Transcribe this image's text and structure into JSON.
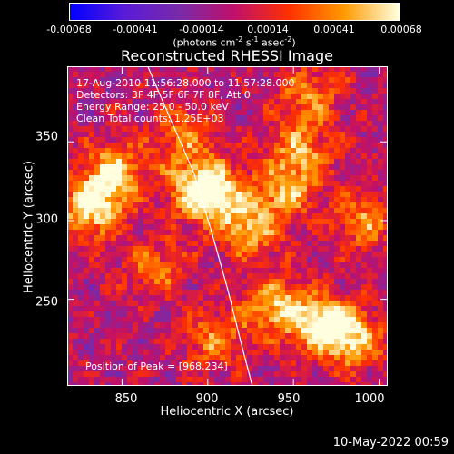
{
  "colorbar": {
    "ticks": [
      "-0.00068",
      "-0.00041",
      "-0.00014",
      "0.00014",
      "0.00041",
      "0.00068"
    ],
    "units_prefix": "(photons cm",
    "units_sup1": "-2",
    "units_mid1": " s",
    "units_sup2": "-1",
    "units_mid2": " asec",
    "units_sup3": "-2",
    "units_suffix": ")",
    "colors": [
      "#0000ff",
      "#5a1bd8",
      "#7a2aa8",
      "#c0106a",
      "#ff3000",
      "#ff9a00",
      "#ffffe0"
    ]
  },
  "info": {
    "time": "17-Aug-2010 11:56:28.000 to 11:57:28.000",
    "detectors": "Detectors: 3F 4F 5F 6F 7F 8F, Att 0",
    "energy": "Energy Range: 25.0 - 50.0 keV",
    "clean": "Clean     Total counts: 1.25E+03",
    "peak": "Position of Peak = [968,234]"
  },
  "chart_data": {
    "type": "heatmap",
    "title": "Reconstructed RHESSI Image",
    "xlabel": "Heliocentric X (arcsec)",
    "ylabel": "Heliocentric Y (arcsec)",
    "xlim": [
      818,
      1005
    ],
    "ylim": [
      195,
      398
    ],
    "x_ticks": [
      850,
      900,
      950,
      1000
    ],
    "y_ticks": [
      250,
      300,
      350
    ],
    "colorbar_range": [
      -0.00068,
      0.00068
    ],
    "peak": [
      968,
      234
    ],
    "limb_curve": {
      "x": [
        865,
        878,
        892,
        903,
        912,
        920,
        926
      ],
      "y": [
        398,
        365,
        330,
        290,
        255,
        220,
        195
      ]
    },
    "hot_spots": [
      {
        "x": 832,
        "y": 308,
        "value": 0.00068
      },
      {
        "x": 845,
        "y": 330,
        "value": 0.0006
      },
      {
        "x": 885,
        "y": 355,
        "value": 0.0004
      },
      {
        "x": 895,
        "y": 323,
        "value": 0.00052
      },
      {
        "x": 903,
        "y": 315,
        "value": 0.00055
      },
      {
        "x": 955,
        "y": 345,
        "value": 0.00045
      },
      {
        "x": 945,
        "y": 320,
        "value": 0.00048
      },
      {
        "x": 925,
        "y": 295,
        "value": 0.0005
      },
      {
        "x": 960,
        "y": 380,
        "value": 0.0004
      },
      {
        "x": 940,
        "y": 245,
        "value": 0.00055
      },
      {
        "x": 968,
        "y": 234,
        "value": 0.00068
      },
      {
        "x": 985,
        "y": 225,
        "value": 0.0005
      },
      {
        "x": 905,
        "y": 225,
        "value": 0.0004
      },
      {
        "x": 990,
        "y": 300,
        "value": 0.00042
      },
      {
        "x": 870,
        "y": 270,
        "value": 0.00035
      }
    ]
  },
  "datestamp": "10-May-2022 00:59"
}
